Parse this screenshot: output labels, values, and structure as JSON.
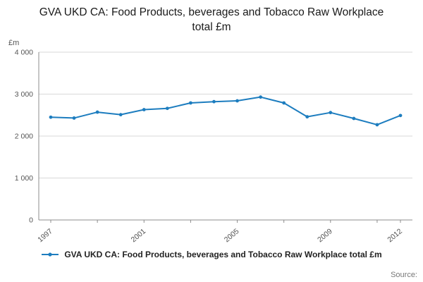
{
  "title": "GVA UKD CA: Food Products, beverages and Tobacco Raw Workplace total £m",
  "legend": {
    "label": "GVA UKD CA: Food Products, beverages and Tobacco Raw Workplace total £m"
  },
  "source": "Source:",
  "colors": {
    "line": "#1d7dbf",
    "grid": "#d9d9d9",
    "axis": "#8c8c8c",
    "tick_text": "#555555"
  },
  "chart_data": {
    "type": "line",
    "title": "GVA UKD CA: Food Products, beverages and Tobacco Raw Workplace total £m",
    "ylabel": "£m",
    "xlabel": "",
    "x": [
      1997,
      1998,
      1999,
      2000,
      2001,
      2002,
      2003,
      2004,
      2005,
      2006,
      2007,
      2008,
      2009,
      2010,
      2011,
      2012
    ],
    "values": [
      2450,
      2430,
      2570,
      2510,
      2630,
      2660,
      2790,
      2820,
      2840,
      2930,
      2790,
      2460,
      2560,
      2420,
      2270,
      2490
    ],
    "ylim": [
      0,
      4000
    ],
    "yticks": [
      0,
      1000,
      2000,
      3000,
      4000
    ],
    "ytick_labels": [
      "0",
      "1 000",
      "2 000",
      "3 000",
      "4 000"
    ],
    "xtick_label_years": [
      1997,
      2001,
      2005,
      2009,
      2012
    ],
    "xtick_mark_years": [
      1997,
      1999,
      2001,
      2003,
      2005,
      2007,
      2009,
      2011,
      2012
    ],
    "grid": true,
    "legend_position": "bottom",
    "marker": "dot"
  }
}
